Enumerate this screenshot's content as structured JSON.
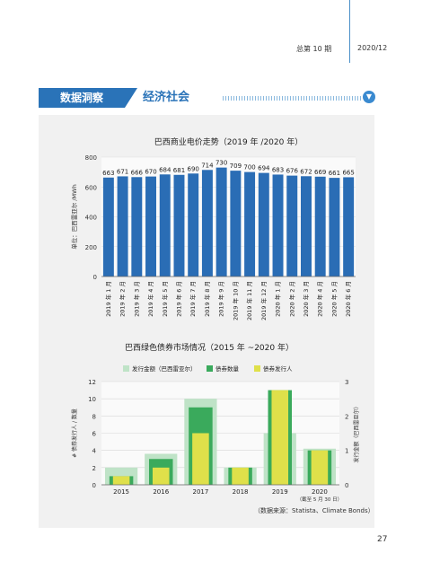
{
  "header": {
    "issue": "总第 10 期",
    "date": "2020/12"
  },
  "banner": {
    "title": "数据洞察",
    "subtitle": "经济社会",
    "icon": "chevron-down-icon"
  },
  "chart_data": [
    {
      "type": "bar",
      "title": "巴西商业电价走势（2019 年 /2020 年）",
      "ylabel": "单位：巴西雷亚尔 /MWh",
      "ylim": [
        0,
        800
      ],
      "yticks": [
        0,
        200,
        400,
        600,
        800
      ],
      "categories": [
        "2019 年 1 月",
        "2019 年 2 月",
        "2019 年 3 月",
        "2019 年 4 月",
        "2019 年 5 月",
        "2019 年 6 月",
        "2019 年 7 月",
        "2019 年 8 月",
        "2019 年 9 月",
        "2019 年 10 月",
        "2019 年 11 月",
        "2019 年 12 月",
        "2020 年 1 月",
        "2020 年 2 月",
        "2020 年 3 月",
        "2020 年 4 月",
        "2020 年 5 月",
        "2020 年 6 月"
      ],
      "values": [
        663,
        671,
        666,
        670,
        684,
        681,
        690,
        714,
        730,
        709,
        700,
        694,
        683,
        676,
        672,
        669,
        661,
        665
      ],
      "color": "#2a6db5"
    },
    {
      "type": "bar",
      "title": "巴西绿色债券市场情况（2015 年 ~2020 年）",
      "ylabel_left": "# 债券发行人 / 数量",
      "ylabel_right": "发行金额（巴西雷亚尔）",
      "ylim_left": [
        0,
        12
      ],
      "ylim_right": [
        0,
        3
      ],
      "yticks_left": [
        0,
        2,
        4,
        6,
        8,
        10,
        12
      ],
      "yticks_right": [
        0,
        1,
        2,
        3
      ],
      "categories": [
        "2015",
        "2016",
        "2017",
        "2018",
        "2019",
        "2020"
      ],
      "category_note": "（截至 5 月 30 日）",
      "series": [
        {
          "name": "发行金额（巴西雷亚尔）",
          "axis": "right",
          "values": [
            0.5,
            0.9,
            2.5,
            0.5,
            1.5,
            1.05
          ],
          "color": "#bfe3c7"
        },
        {
          "name": "债券数量",
          "axis": "left",
          "values": [
            1,
            3,
            9,
            2,
            11,
            4
          ],
          "color": "#3aaa5c"
        },
        {
          "name": "债券发行人",
          "axis": "left",
          "values": [
            1,
            2,
            6,
            2,
            11,
            4
          ],
          "color": "#dfe04a"
        }
      ]
    }
  ],
  "source": "（数据来源：Statista、Climate Bonds）",
  "page_number": "27"
}
